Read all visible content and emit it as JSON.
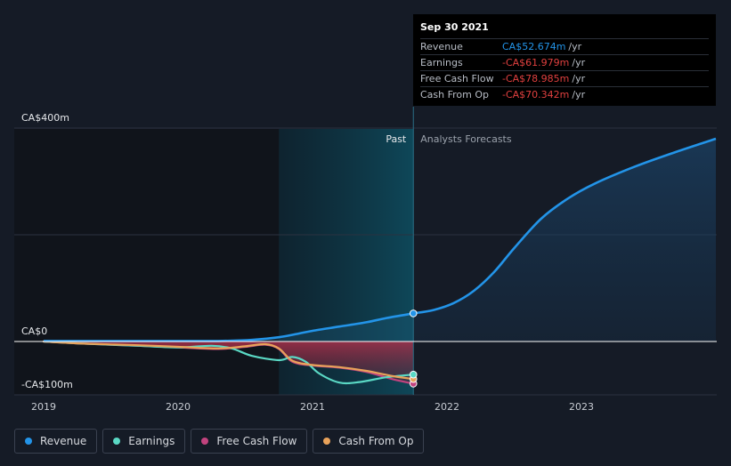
{
  "chart_data": {
    "type": "line",
    "y_unit": "CA$m",
    "ylim": [
      -100,
      400
    ],
    "y_ticks": [
      {
        "value": 400,
        "label": "CA$400m"
      },
      {
        "value": 0,
        "label": "CA$0"
      },
      {
        "value": -100,
        "label": "-CA$100m"
      }
    ],
    "xlim": [
      2018.9,
      2024.0
    ],
    "x_ticks": [
      {
        "value": 2019,
        "label": "2019"
      },
      {
        "value": 2020,
        "label": "2020"
      },
      {
        "value": 2021,
        "label": "2021"
      },
      {
        "value": 2022,
        "label": "2022"
      },
      {
        "value": 2023,
        "label": "2023"
      }
    ],
    "divider_x": 2021.75,
    "highlight_start_x": 2020.75,
    "past_label": "Past",
    "forecast_label": "Analysts Forecasts",
    "series": [
      {
        "name": "Revenue",
        "color": "#2394e8",
        "points": [
          [
            2019.0,
            1
          ],
          [
            2019.5,
            1
          ],
          [
            2020.0,
            1
          ],
          [
            2020.3,
            1
          ],
          [
            2020.55,
            3
          ],
          [
            2020.75,
            8
          ],
          [
            2020.9,
            15
          ],
          [
            2021.0,
            20
          ],
          [
            2021.2,
            28
          ],
          [
            2021.4,
            36
          ],
          [
            2021.55,
            44
          ],
          [
            2021.75,
            52.674
          ]
        ],
        "forecast": [
          [
            2021.75,
            52.674
          ],
          [
            2021.9,
            59
          ],
          [
            2022.05,
            72
          ],
          [
            2022.2,
            95
          ],
          [
            2022.35,
            130
          ],
          [
            2022.5,
            175
          ],
          [
            2022.7,
            230
          ],
          [
            2022.9,
            268
          ],
          [
            2023.1,
            296
          ],
          [
            2023.4,
            328
          ],
          [
            2023.7,
            355
          ],
          [
            2024.0,
            380
          ]
        ]
      },
      {
        "name": "Earnings",
        "color": "#5ad8c4",
        "points": [
          [
            2019.0,
            0
          ],
          [
            2019.3,
            -4
          ],
          [
            2019.7,
            -8
          ],
          [
            2020.0,
            -11
          ],
          [
            2020.25,
            -8
          ],
          [
            2020.4,
            -13
          ],
          [
            2020.55,
            -27
          ],
          [
            2020.75,
            -35
          ],
          [
            2020.85,
            -29
          ],
          [
            2020.95,
            -38
          ],
          [
            2021.05,
            -60
          ],
          [
            2021.2,
            -77
          ],
          [
            2021.35,
            -76
          ],
          [
            2021.55,
            -67
          ],
          [
            2021.75,
            -61.979
          ]
        ]
      },
      {
        "name": "Free Cash Flow",
        "color": "#c1437e",
        "points": [
          [
            2019.0,
            0
          ],
          [
            2019.3,
            -4
          ],
          [
            2019.7,
            -8
          ],
          [
            2020.0,
            -11
          ],
          [
            2020.3,
            -14
          ],
          [
            2020.5,
            -10
          ],
          [
            2020.65,
            -6
          ],
          [
            2020.75,
            -14
          ],
          [
            2020.85,
            -38
          ],
          [
            2021.0,
            -45
          ],
          [
            2021.2,
            -49
          ],
          [
            2021.4,
            -57
          ],
          [
            2021.6,
            -71
          ],
          [
            2021.75,
            -78.985
          ]
        ]
      },
      {
        "name": "Cash From Op",
        "color": "#e8a25a",
        "points": [
          [
            2019.0,
            0
          ],
          [
            2019.3,
            -4
          ],
          [
            2019.7,
            -7
          ],
          [
            2020.0,
            -10
          ],
          [
            2020.3,
            -13
          ],
          [
            2020.5,
            -9
          ],
          [
            2020.65,
            -5
          ],
          [
            2020.75,
            -13
          ],
          [
            2020.85,
            -36
          ],
          [
            2021.0,
            -44
          ],
          [
            2021.2,
            -48
          ],
          [
            2021.4,
            -55
          ],
          [
            2021.6,
            -65
          ],
          [
            2021.75,
            -70.342
          ]
        ]
      }
    ]
  },
  "tooltip": {
    "date": "Sep 30 2021",
    "rows": [
      {
        "label": "Revenue",
        "value": "CA$52.674m",
        "unit": "/yr",
        "color": "#2394e8"
      },
      {
        "label": "Earnings",
        "value": "-CA$61.979m",
        "unit": "/yr",
        "color": "#e0403f"
      },
      {
        "label": "Free Cash Flow",
        "value": "-CA$78.985m",
        "unit": "/yr",
        "color": "#e0403f"
      },
      {
        "label": "Cash From Op",
        "value": "-CA$70.342m",
        "unit": "/yr",
        "color": "#e0403f"
      }
    ]
  },
  "legend": [
    {
      "label": "Revenue",
      "color": "#2394e8"
    },
    {
      "label": "Earnings",
      "color": "#5ad8c4"
    },
    {
      "label": "Free Cash Flow",
      "color": "#c1437e"
    },
    {
      "label": "Cash From Op",
      "color": "#e8a25a"
    }
  ]
}
